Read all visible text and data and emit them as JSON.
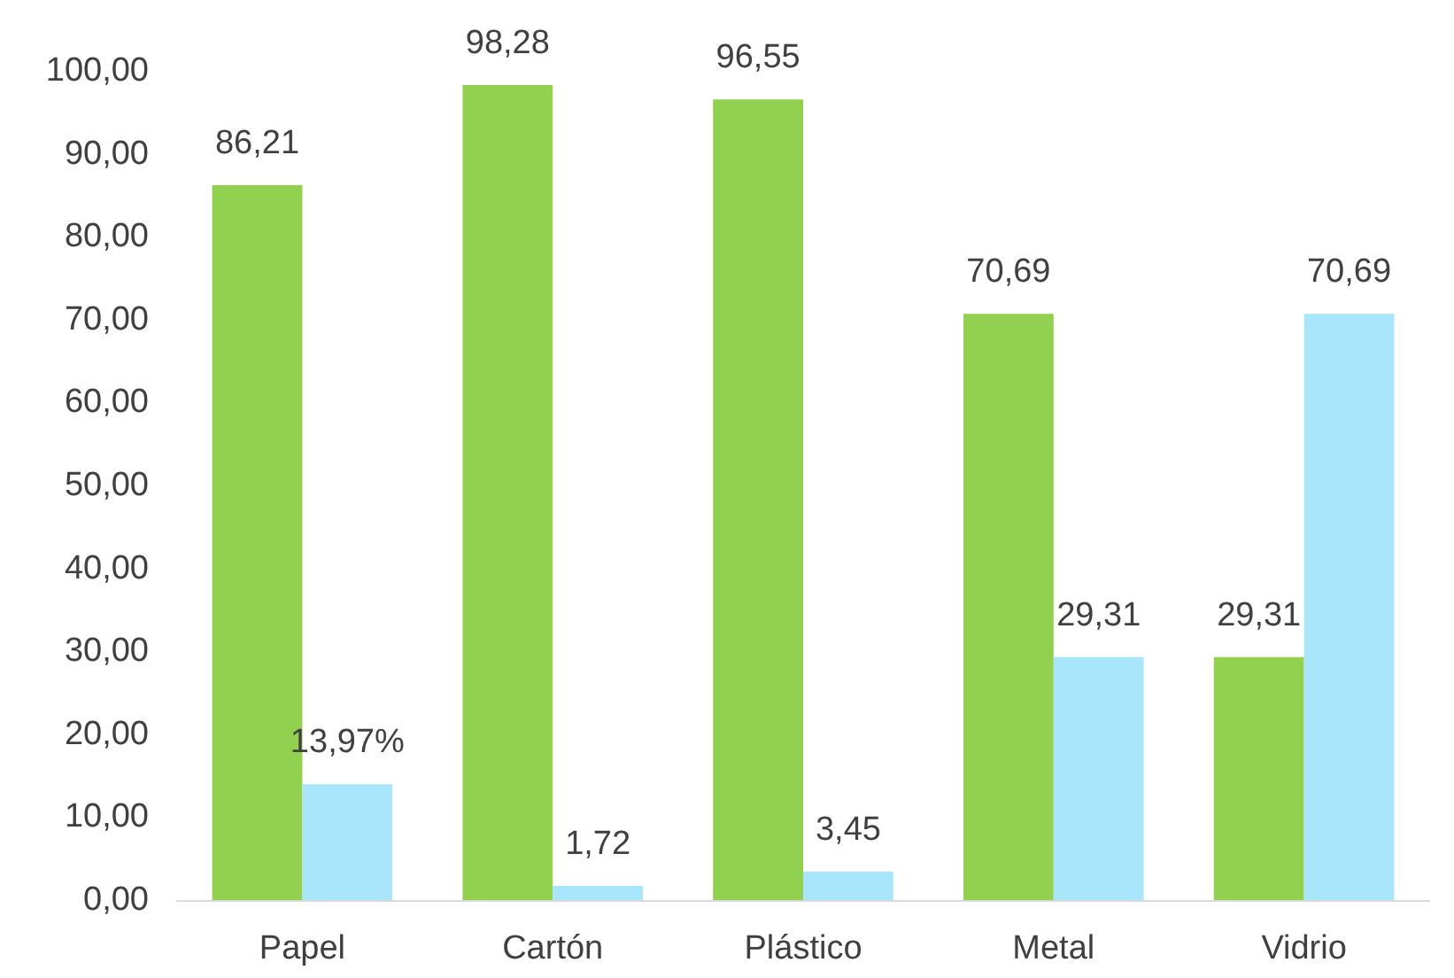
{
  "chart_data": {
    "type": "bar",
    "categories": [
      "Papel",
      "Cartón",
      "Plástico",
      "Metal",
      "Vidrio"
    ],
    "series": [
      {
        "color": "#92d050",
        "values": [
          86.21,
          98.28,
          96.55,
          70.69,
          29.31
        ],
        "value_labels": [
          "86,21",
          "98,28",
          "96,55",
          "70,69",
          "29,31"
        ]
      },
      {
        "color": "#a9e5fb",
        "values": [
          13.97,
          1.72,
          3.45,
          29.31,
          70.69
        ],
        "value_labels": [
          "13,97%",
          "1,72",
          "3,45",
          "29,31",
          "70,69"
        ]
      }
    ],
    "ylim": [
      0,
      100
    ],
    "yticks": [
      {
        "value": 0,
        "label": "0,00"
      },
      {
        "value": 10,
        "label": "10,00"
      },
      {
        "value": 20,
        "label": "20,00"
      },
      {
        "value": 30,
        "label": "30,00"
      },
      {
        "value": 40,
        "label": "40,00"
      },
      {
        "value": 50,
        "label": "50,00"
      },
      {
        "value": 60,
        "label": "60,00"
      },
      {
        "value": 70,
        "label": "70,00"
      },
      {
        "value": 80,
        "label": "80,00"
      },
      {
        "value": 90,
        "label": "90,00"
      },
      {
        "value": 100,
        "label": "100,00"
      }
    ],
    "grid": false
  }
}
